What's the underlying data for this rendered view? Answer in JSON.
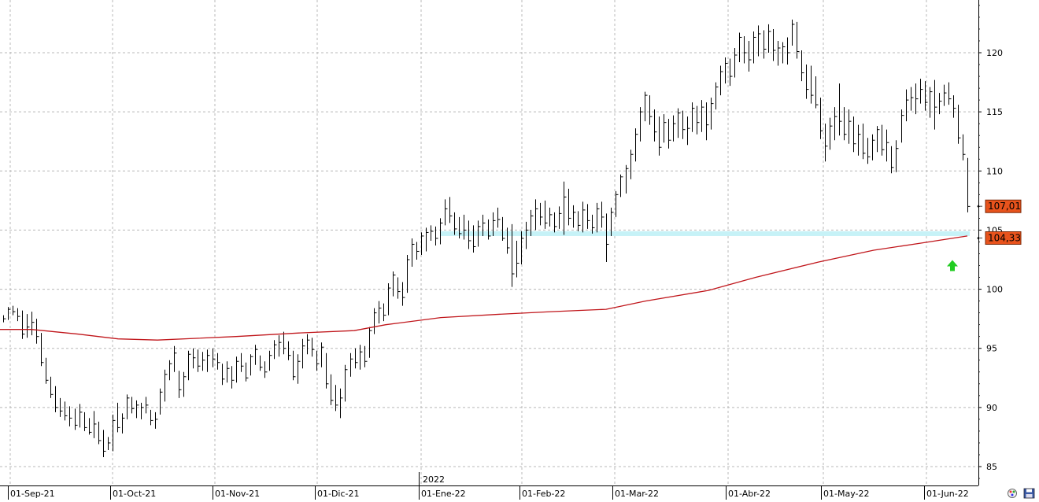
{
  "chart_data": {
    "type": "ohlc",
    "x_axis": {
      "labels": [
        "01-Sep-21",
        "01-Oct-21",
        "01-Nov-21",
        "01-Dic-21",
        "01-Ene-22",
        "01-Feb-22",
        "01-Mar-22",
        "01-Abr-22",
        "01-May-22",
        "01-Jun-22"
      ],
      "year_label": "2022"
    },
    "y_axis": {
      "ticks": [
        85,
        90,
        95,
        100,
        105,
        110,
        115,
        120
      ],
      "range": [
        84,
        124
      ],
      "position": "right"
    },
    "grid": true,
    "price_tags": [
      {
        "text": "107,01",
        "value": 107.01,
        "color": "#e8531c"
      },
      {
        "text": "104,33",
        "value": 104.33,
        "color": "#e8531c"
      }
    ],
    "support_band": {
      "from": 104.5,
      "to": 104.9,
      "color": "#c6f2f7"
    },
    "moving_average": {
      "color": "#c0161b",
      "points": [
        [
          0,
          96.6
        ],
        [
          40,
          96.6
        ],
        [
          100,
          96.2
        ],
        [
          150,
          95.8
        ],
        [
          200,
          95.7
        ],
        [
          300,
          96.0
        ],
        [
          380,
          96.3
        ],
        [
          450,
          96.5
        ],
        [
          490,
          97.0
        ],
        [
          560,
          97.6
        ],
        [
          640,
          97.9
        ],
        [
          700,
          98.1
        ],
        [
          770,
          98.3
        ],
        [
          820,
          99.0
        ],
        [
          900,
          99.9
        ],
        [
          960,
          101.0
        ],
        [
          1040,
          102.3
        ],
        [
          1110,
          103.3
        ],
        [
          1170,
          103.9
        ],
        [
          1229,
          104.5
        ]
      ]
    },
    "signal_arrow": {
      "color": "#22cc22",
      "value": 102
    },
    "series": [
      {
        "values": [
          [
            97.8,
            97.2,
            97.5
          ],
          [
            98.5,
            97.4,
            98.3
          ],
          [
            98.6,
            97.8,
            98.1
          ],
          [
            98.4,
            97.3,
            97.7
          ],
          [
            98.2,
            95.8,
            96.2
          ],
          [
            97.9,
            95.9,
            96.8
          ],
          [
            98.1,
            96.1,
            97.2
          ],
          [
            97.5,
            95.4,
            96.0
          ],
          [
            96.3,
            93.5,
            93.8
          ],
          [
            94.2,
            92.0,
            92.3
          ],
          [
            92.6,
            90.8,
            91.1
          ],
          [
            91.8,
            89.6,
            90.0
          ],
          [
            90.8,
            89.2,
            89.7
          ],
          [
            90.5,
            88.9,
            89.3
          ],
          [
            90.1,
            88.4,
            89.1
          ],
          [
            89.9,
            88.1,
            88.5
          ],
          [
            90.3,
            88.3,
            89.6
          ],
          [
            89.6,
            88.0,
            88.3
          ],
          [
            89.1,
            87.7,
            87.9
          ],
          [
            89.7,
            87.4,
            88.6
          ],
          [
            88.8,
            86.9,
            87.2
          ],
          [
            88.1,
            85.8,
            86.3
          ],
          [
            87.5,
            86.4,
            87.0
          ],
          [
            89.4,
            86.3,
            88.9
          ],
          [
            90.4,
            87.9,
            88.3
          ],
          [
            89.5,
            87.8,
            89.1
          ],
          [
            91.1,
            89.0,
            90.8
          ],
          [
            90.9,
            89.5,
            89.9
          ],
          [
            90.6,
            89.1,
            90.2
          ],
          [
            90.4,
            89.0,
            90.0
          ],
          [
            90.9,
            89.5,
            90.2
          ],
          [
            89.8,
            88.5,
            88.9
          ],
          [
            89.6,
            88.2,
            89.0
          ],
          [
            91.6,
            89.4,
            91.3
          ],
          [
            93.2,
            90.5,
            92.8
          ],
          [
            94.0,
            92.3,
            93.7
          ],
          [
            95.2,
            93.0,
            94.6
          ],
          [
            93.1,
            90.8,
            91.5
          ],
          [
            93.0,
            90.9,
            92.6
          ],
          [
            94.8,
            92.3,
            94.5
          ],
          [
            95.0,
            93.3,
            94.2
          ],
          [
            94.9,
            93.0,
            93.5
          ],
          [
            94.7,
            93.1,
            94.0
          ],
          [
            94.9,
            93.0,
            94.4
          ],
          [
            95.0,
            93.4,
            94.1
          ],
          [
            94.6,
            93.2,
            93.8
          ],
          [
            93.7,
            91.9,
            92.4
          ],
          [
            93.9,
            92.1,
            93.3
          ],
          [
            93.5,
            91.6,
            92.3
          ],
          [
            94.3,
            92.1,
            93.9
          ],
          [
            94.6,
            93.0,
            93.5
          ],
          [
            93.8,
            92.2,
            92.5
          ],
          [
            94.5,
            92.7,
            94.3
          ],
          [
            95.3,
            93.6,
            94.9
          ],
          [
            94.4,
            93.1,
            93.4
          ],
          [
            93.9,
            92.5,
            93.0
          ],
          [
            94.8,
            93.1,
            94.4
          ],
          [
            95.7,
            94.1,
            95.3
          ],
          [
            96.1,
            94.3,
            95.5
          ],
          [
            96.4,
            94.5,
            95.0
          ],
          [
            95.6,
            94.0,
            94.4
          ],
          [
            94.8,
            92.3,
            92.6
          ],
          [
            94.5,
            92.0,
            93.9
          ],
          [
            95.8,
            93.3,
            95.2
          ],
          [
            96.2,
            94.5,
            95.7
          ],
          [
            95.9,
            94.3,
            94.9
          ],
          [
            94.8,
            93.1,
            93.7
          ],
          [
            95.5,
            93.4,
            95.1
          ],
          [
            94.6,
            91.6,
            92.0
          ],
          [
            92.8,
            90.2,
            90.6
          ],
          [
            91.9,
            89.7,
            90.2
          ],
          [
            91.6,
            89.1,
            90.8
          ],
          [
            93.6,
            90.5,
            93.2
          ],
          [
            94.6,
            92.6,
            94.1
          ],
          [
            95.0,
            93.3,
            93.8
          ],
          [
            95.3,
            93.2,
            94.7
          ],
          [
            95.2,
            93.4,
            93.9
          ],
          [
            96.8,
            94.2,
            96.5
          ],
          [
            98.4,
            96.2,
            98.0
          ],
          [
            99.0,
            97.1,
            98.4
          ],
          [
            98.8,
            97.3,
            97.8
          ],
          [
            100.5,
            97.8,
            100.1
          ],
          [
            101.5,
            99.4,
            101.2
          ],
          [
            101.0,
            99.2,
            99.8
          ],
          [
            100.6,
            98.6,
            99.3
          ],
          [
            102.9,
            99.7,
            102.5
          ],
          [
            104.3,
            101.9,
            103.8
          ],
          [
            104.0,
            102.5,
            103.2
          ],
          [
            104.8,
            102.9,
            104.5
          ],
          [
            105.2,
            103.2,
            104.8
          ],
          [
            105.4,
            104.1,
            104.9
          ],
          [
            105.3,
            103.7,
            104.3
          ],
          [
            106.0,
            103.8,
            105.6
          ],
          [
            107.6,
            105.4,
            106.8
          ],
          [
            107.8,
            105.6,
            106.2
          ],
          [
            106.5,
            104.6,
            105.1
          ],
          [
            106.1,
            104.3,
            104.7
          ],
          [
            106.3,
            104.2,
            105.0
          ],
          [
            105.8,
            103.4,
            104.1
          ],
          [
            105.4,
            103.1,
            103.6
          ],
          [
            105.8,
            103.6,
            105.3
          ],
          [
            106.3,
            104.5,
            105.6
          ],
          [
            105.9,
            104.2,
            104.5
          ],
          [
            106.5,
            104.5,
            105.8
          ],
          [
            106.9,
            105.2,
            105.9
          ],
          [
            106.1,
            104.1,
            104.3
          ],
          [
            105.2,
            103.0,
            103.5
          ],
          [
            105.5,
            100.2,
            101.3
          ],
          [
            104.1,
            101.0,
            102.2
          ],
          [
            104.9,
            102.1,
            104.3
          ],
          [
            105.7,
            103.4,
            105.0
          ],
          [
            106.7,
            104.5,
            106.2
          ],
          [
            107.6,
            105.0,
            106.8
          ],
          [
            107.3,
            105.4,
            106.1
          ],
          [
            107.5,
            105.1,
            105.6
          ],
          [
            106.9,
            105.3,
            106.3
          ],
          [
            106.5,
            104.8,
            105.3
          ],
          [
            107.0,
            105.1,
            106.4
          ],
          [
            109.1,
            104.6,
            107.8
          ],
          [
            108.5,
            105.4,
            106.0
          ],
          [
            107.1,
            105.2,
            106.5
          ],
          [
            106.6,
            104.9,
            105.4
          ],
          [
            107.4,
            104.8,
            106.7
          ],
          [
            107.2,
            105.1,
            105.8
          ],
          [
            106.3,
            104.7,
            105.2
          ],
          [
            107.3,
            104.8,
            106.8
          ],
          [
            107.4,
            105.2,
            106.1
          ],
          [
            106.4,
            102.3,
            103.8
          ],
          [
            106.9,
            104.5,
            106.5
          ],
          [
            108.3,
            106.1,
            108.0
          ],
          [
            109.7,
            107.8,
            109.5
          ],
          [
            110.5,
            108.1,
            110.2
          ],
          [
            111.8,
            109.3,
            111.4
          ],
          [
            113.6,
            110.8,
            113.1
          ],
          [
            115.4,
            112.5,
            115.0
          ],
          [
            116.7,
            114.2,
            116.4
          ],
          [
            116.4,
            113.9,
            114.6
          ],
          [
            115.2,
            112.5,
            113.3
          ],
          [
            114.6,
            111.3,
            112.0
          ],
          [
            114.8,
            112.4,
            114.1
          ],
          [
            114.4,
            111.9,
            112.6
          ],
          [
            114.7,
            112.5,
            114.0
          ],
          [
            115.3,
            112.8,
            114.9
          ],
          [
            115.1,
            112.7,
            113.5
          ],
          [
            114.6,
            112.2,
            113.6
          ],
          [
            115.8,
            113.3,
            115.3
          ],
          [
            115.5,
            113.1,
            114.1
          ],
          [
            116.0,
            113.3,
            115.4
          ],
          [
            115.8,
            112.6,
            113.9
          ],
          [
            116.2,
            113.5,
            115.7
          ],
          [
            117.5,
            115.2,
            117.1
          ],
          [
            118.9,
            116.4,
            118.4
          ],
          [
            119.6,
            117.4,
            119.1
          ],
          [
            119.5,
            117.2,
            118.0
          ],
          [
            120.4,
            117.9,
            119.8
          ],
          [
            121.7,
            119.2,
            121.3
          ],
          [
            121.4,
            119.1,
            120.0
          ],
          [
            121.0,
            118.4,
            119.4
          ],
          [
            121.8,
            119.1,
            121.3
          ],
          [
            122.3,
            119.7,
            121.6
          ],
          [
            121.9,
            119.5,
            120.3
          ],
          [
            122.4,
            120.0,
            121.8
          ],
          [
            122.0,
            119.3,
            120.2
          ],
          [
            121.0,
            118.9,
            120.4
          ],
          [
            120.9,
            119.1,
            120.5
          ],
          [
            121.3,
            119.0,
            120.0
          ],
          [
            122.8,
            120.6,
            122.4
          ],
          [
            122.6,
            119.5,
            120.1
          ],
          [
            120.2,
            117.6,
            118.3
          ],
          [
            119.0,
            116.1,
            116.9
          ],
          [
            118.9,
            115.7,
            116.4
          ],
          [
            118.0,
            115.3,
            115.6
          ],
          [
            116.2,
            112.7,
            113.4
          ],
          [
            114.0,
            110.8,
            112.1
          ],
          [
            114.5,
            111.8,
            113.8
          ],
          [
            115.4,
            112.6,
            114.6
          ],
          [
            117.4,
            113.0,
            114.2
          ],
          [
            115.4,
            112.6,
            113.1
          ],
          [
            115.2,
            112.3,
            114.2
          ],
          [
            114.6,
            111.6,
            112.3
          ],
          [
            113.9,
            111.3,
            113.1
          ],
          [
            114.0,
            111.0,
            111.5
          ],
          [
            112.8,
            110.6,
            111.2
          ],
          [
            113.1,
            110.9,
            112.6
          ],
          [
            113.8,
            111.6,
            113.5
          ],
          [
            113.9,
            111.3,
            111.8
          ],
          [
            113.5,
            110.8,
            112.4
          ],
          [
            112.1,
            109.8,
            110.3
          ],
          [
            112.6,
            109.9,
            111.9
          ],
          [
            115.2,
            112.4,
            114.7
          ],
          [
            116.9,
            114.2,
            116.0
          ],
          [
            117.1,
            115.1,
            116.2
          ],
          [
            117.4,
            114.8,
            116.1
          ],
          [
            117.8,
            115.7,
            116.9
          ],
          [
            117.6,
            115.1,
            115.8
          ],
          [
            117.1,
            114.5,
            116.7
          ],
          [
            117.7,
            113.5,
            115.4
          ],
          [
            116.6,
            114.8,
            115.9
          ],
          [
            117.3,
            115.5,
            116.6
          ],
          [
            117.5,
            115.6,
            116.1
          ],
          [
            116.4,
            114.5,
            115.3
          ],
          [
            115.6,
            112.3,
            112.8
          ],
          [
            113.1,
            110.9,
            111.4
          ],
          [
            111.1,
            106.5,
            107.0
          ]
        ]
      }
    ]
  },
  "ui": {
    "bottom_icons": [
      {
        "name": "color-palette-icon"
      },
      {
        "name": "save-disk-icon"
      }
    ]
  }
}
